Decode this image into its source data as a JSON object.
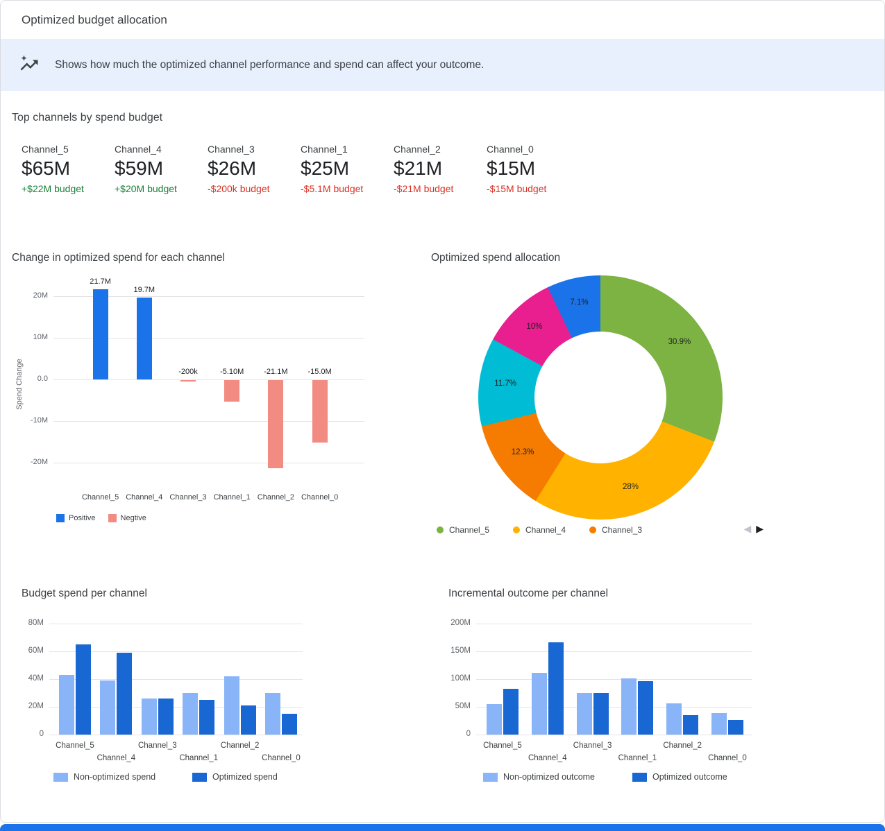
{
  "header": {
    "title": "Optimized budget allocation"
  },
  "banner": {
    "text": "Shows how much the optimized channel performance and spend can affect your outcome."
  },
  "top_channels": {
    "heading": "Top channels by spend budget",
    "colors": {
      "positive": "#188038",
      "negative": "#d93025"
    },
    "cards": [
      {
        "name": "Channel_5",
        "value": "$65M",
        "delta": "+$22M budget",
        "direction": "positive"
      },
      {
        "name": "Channel_4",
        "value": "$59M",
        "delta": "+$20M budget",
        "direction": "positive"
      },
      {
        "name": "Channel_3",
        "value": "$26M",
        "delta": "-$200k budget",
        "direction": "negative"
      },
      {
        "name": "Channel_1",
        "value": "$25M",
        "delta": "-$5.1M budget",
        "direction": "negative"
      },
      {
        "name": "Channel_2",
        "value": "$21M",
        "delta": "-$21M budget",
        "direction": "negative"
      },
      {
        "name": "Channel_0",
        "value": "$15M",
        "delta": "-$15M budget",
        "direction": "negative"
      }
    ]
  },
  "icons": {
    "prev": "◀",
    "next": "▶"
  },
  "chart_data": [
    {
      "id": "spend_change",
      "type": "bar",
      "title": "Change in optimized spend for each channel",
      "ylabel": "Spend Change",
      "unit": "millions USD",
      "categories": [
        "Channel_5",
        "Channel_4",
        "Channel_3",
        "Channel_1",
        "Channel_2",
        "Channel_0"
      ],
      "values_millions": [
        21.7,
        19.7,
        -0.2,
        -5.1,
        -21.1,
        -15.0
      ],
      "bar_labels": [
        "21.7M",
        "19.7M",
        "-200k",
        "-5.10M",
        "-21.1M",
        "-15.0M"
      ],
      "yticks": [
        {
          "value": 20,
          "label": "20M"
        },
        {
          "value": 10,
          "label": "10M"
        },
        {
          "value": 0,
          "label": "0.0"
        },
        {
          "value": -10,
          "label": "-10M"
        },
        {
          "value": -20,
          "label": "-20M"
        }
      ],
      "ylim": [
        -25.3,
        23
      ],
      "grid": true,
      "colors": {
        "positive": "#1a73e8",
        "negative": "#f28b82"
      },
      "legend": [
        {
          "label": "Positive",
          "color": "#1a73e8"
        },
        {
          "label": "Negtive",
          "color": "#f28b82"
        }
      ],
      "legend_position": "bottom-left"
    },
    {
      "id": "spend_allocation",
      "type": "pie",
      "title": "Optimized spend allocation",
      "start_angle_deg": 0,
      "slices": [
        {
          "label": "Channel_5",
          "value_pct": 30.9,
          "display": "30.9%",
          "color": "#7cb342"
        },
        {
          "label": "Channel_4",
          "value_pct": 28,
          "display": "28%",
          "color": "#ffb300"
        },
        {
          "label": "Channel_3",
          "value_pct": 12.3,
          "display": "12.3%",
          "color": "#f57c00"
        },
        {
          "label": "Channel_1",
          "value_pct": 11.7,
          "display": "11.7%",
          "color": "#00bcd4"
        },
        {
          "label": "Channel_2",
          "value_pct": 10,
          "display": "10%",
          "color": "#e91e8f"
        },
        {
          "label": "Channel_0",
          "value_pct": 7.1,
          "display": "7.1%",
          "color": "#1a73e8"
        }
      ],
      "legend_visible": [
        "Channel_5",
        "Channel_4",
        "Channel_3"
      ],
      "legend_position": "bottom",
      "legend_paginated": true
    },
    {
      "id": "budget_spend",
      "type": "bar",
      "title": "Budget spend per channel",
      "unit": "millions USD",
      "categories": [
        "Channel_5",
        "Channel_4",
        "Channel_3",
        "Channel_1",
        "Channel_2",
        "Channel_0"
      ],
      "series": [
        {
          "name": "Non-optimized spend",
          "color": "#8ab4f8",
          "values_millions": [
            43,
            39,
            26.2,
            30.1,
            42.1,
            30
          ]
        },
        {
          "name": "Optimized spend",
          "color": "#1967d2",
          "values_millions": [
            65,
            59,
            26,
            25,
            21,
            15
          ]
        }
      ],
      "yticks": [
        {
          "value": 0,
          "label": "0"
        },
        {
          "value": 20,
          "label": "20M"
        },
        {
          "value": 40,
          "label": "40M"
        },
        {
          "value": 60,
          "label": "60M"
        },
        {
          "value": 80,
          "label": "80M"
        }
      ],
      "ylim": [
        0,
        80
      ],
      "grid": true,
      "legend_position": "bottom"
    },
    {
      "id": "incremental_outcome",
      "type": "bar",
      "title": "Incremental outcome per channel",
      "unit": "millions USD",
      "categories": [
        "Channel_5",
        "Channel_4",
        "Channel_3",
        "Channel_1",
        "Channel_2",
        "Channel_0"
      ],
      "series": [
        {
          "name": "Non-optimized outcome",
          "color": "#8ab4f8",
          "values_millions": [
            55,
            111,
            75,
            101,
            56,
            39
          ]
        },
        {
          "name": "Optimized outcome",
          "color": "#1967d2",
          "values_millions": [
            82,
            166,
            75,
            96,
            35,
            26
          ]
        }
      ],
      "yticks": [
        {
          "value": 0,
          "label": "0"
        },
        {
          "value": 50,
          "label": "50M"
        },
        {
          "value": 100,
          "label": "100M"
        },
        {
          "value": 150,
          "label": "150M"
        },
        {
          "value": 200,
          "label": "200M"
        }
      ],
      "ylim": [
        0,
        200
      ],
      "grid": true,
      "legend_position": "bottom"
    }
  ],
  "footer": {
    "accent_color": "#1a73e8"
  }
}
